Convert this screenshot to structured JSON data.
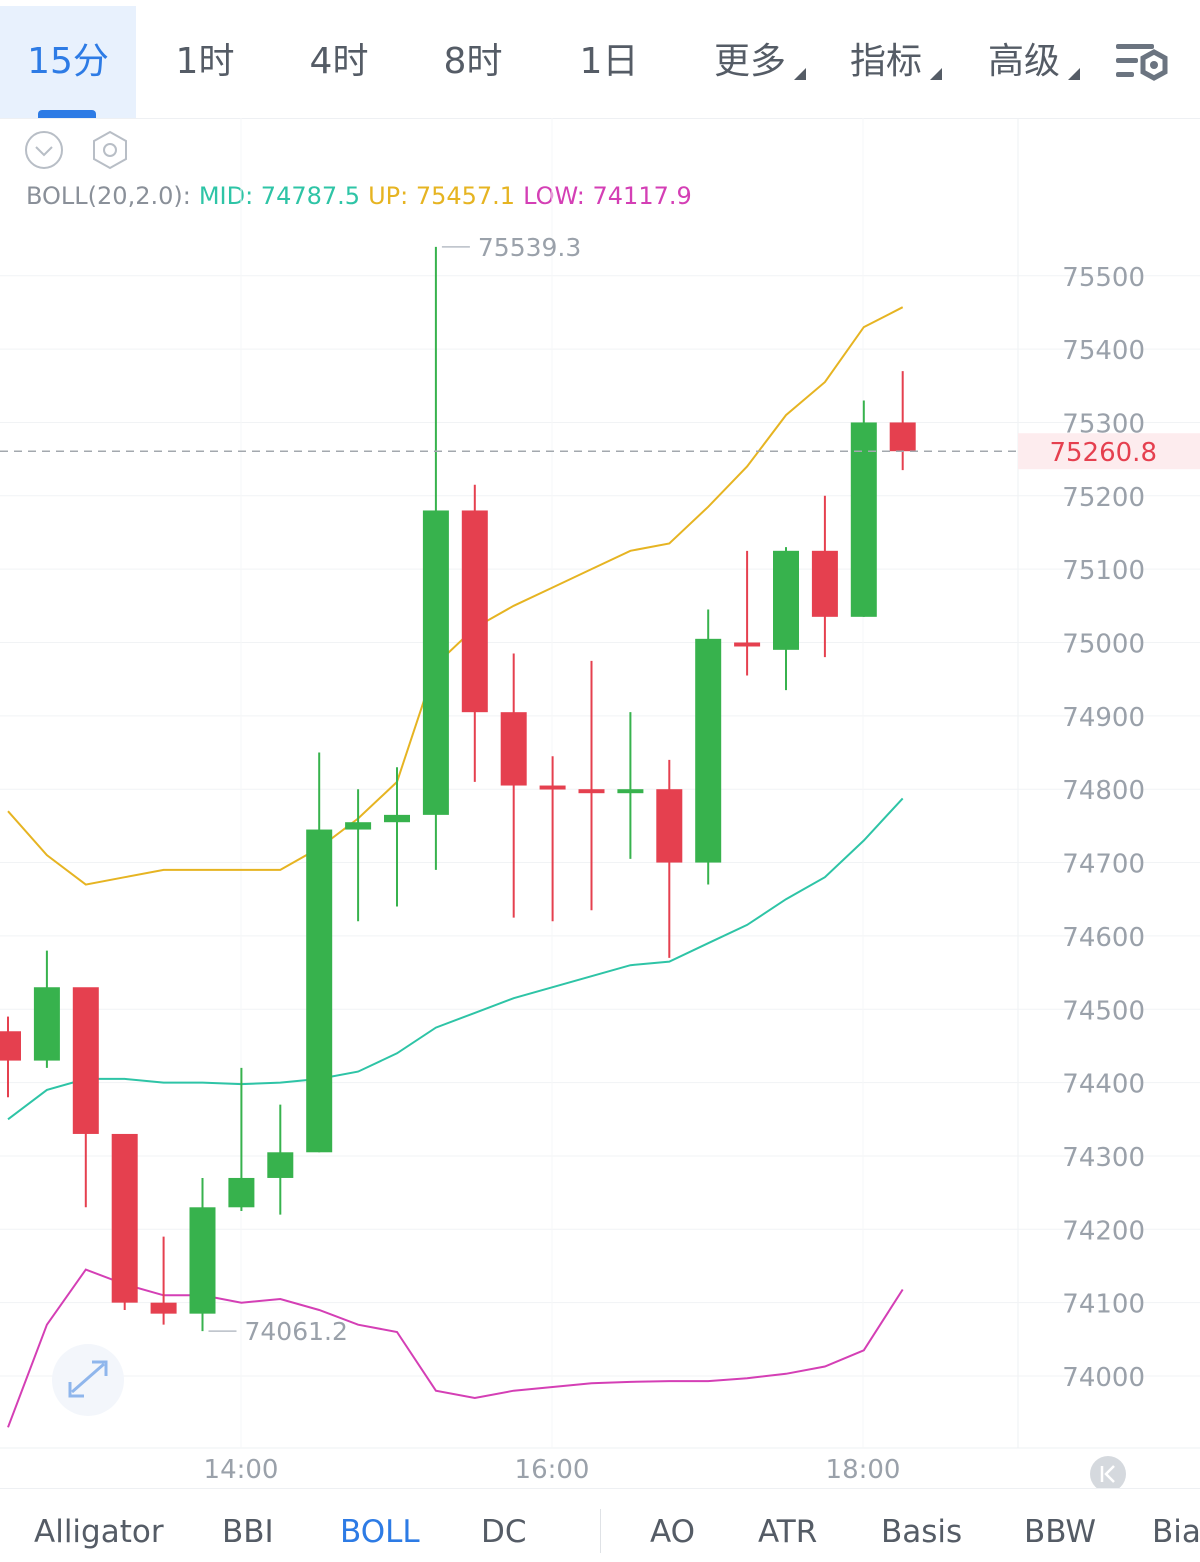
{
  "timeframe_tabs": [
    "15分",
    "1时",
    "4时",
    "8时",
    "1日"
  ],
  "menu_tabs": [
    "更多",
    "指标",
    "高级"
  ],
  "active_tab": "15分",
  "legend": {
    "name": "BOLL(20,2.0):",
    "mid": "MID: 74787.5",
    "up": "UP: 75457.1",
    "low": "LOW: 74117.9"
  },
  "indicators": [
    "Alligator",
    "BBI",
    "BOLL",
    "DC",
    "AO",
    "ATR",
    "Basis",
    "BBW",
    "Bias"
  ],
  "active_indicator": "BOLL",
  "colors": {
    "up_candle": "#37b24d",
    "down_candle": "#e5404f",
    "mid_line": "#2ec4a6",
    "upper_line": "#e6b422",
    "lower_line": "#d43fb5",
    "accent": "#2d7be5",
    "current_price": "#e5404f"
  },
  "chart_data": {
    "type": "candlestick",
    "x_labels": [
      "14:00",
      "16:00",
      "18:00"
    ],
    "y_ticks": [
      74000,
      74100,
      74200,
      74300,
      74400,
      74500,
      74600,
      74700,
      74800,
      74900,
      75000,
      75100,
      75200,
      75300,
      75400,
      75500
    ],
    "ylim": [
      73910,
      75570
    ],
    "current_price": 75260.8,
    "current_price_label": "75260.8",
    "max_label": "75539.3",
    "min_label": "74061.2",
    "candles": [
      {
        "o": 74470,
        "h": 74490,
        "l": 74380,
        "c": 74430
      },
      {
        "o": 74430,
        "h": 74580,
        "l": 74420,
        "c": 74530
      },
      {
        "o": 74530,
        "h": 74520,
        "l": 74230,
        "c": 74330
      },
      {
        "o": 74330,
        "h": 74330,
        "l": 74090,
        "c": 74100
      },
      {
        "o": 74100,
        "h": 74190,
        "l": 74070,
        "c": 74085
      },
      {
        "o": 74085,
        "h": 74270,
        "l": 74061.2,
        "c": 74230
      },
      {
        "o": 74230,
        "h": 74420,
        "l": 74225,
        "c": 74270
      },
      {
        "o": 74270,
        "h": 74370,
        "l": 74220,
        "c": 74305
      },
      {
        "o": 74305,
        "h": 74850,
        "l": 74305,
        "c": 74745
      },
      {
        "o": 74745,
        "h": 74800,
        "l": 74620,
        "c": 74755
      },
      {
        "o": 74755,
        "h": 74830,
        "l": 74640,
        "c": 74765
      },
      {
        "o": 74765,
        "h": 75539.3,
        "l": 74690,
        "c": 75180
      },
      {
        "o": 75180,
        "h": 75215,
        "l": 74810,
        "c": 74905
      },
      {
        "o": 74905,
        "h": 74985,
        "l": 74625,
        "c": 74805
      },
      {
        "o": 74805,
        "h": 74845,
        "l": 74620,
        "c": 74800
      },
      {
        "o": 74800,
        "h": 74975,
        "l": 74635,
        "c": 74795
      },
      {
        "o": 74795,
        "h": 74905,
        "l": 74705,
        "c": 74800
      },
      {
        "o": 74800,
        "h": 74840,
        "l": 74570,
        "c": 74700
      },
      {
        "o": 74700,
        "h": 75045,
        "l": 74670,
        "c": 75005
      },
      {
        "o": 75000,
        "h": 75125,
        "l": 74955,
        "c": 74995
      },
      {
        "o": 74990,
        "h": 75130,
        "l": 74935,
        "c": 75125
      },
      {
        "o": 75125,
        "h": 75200,
        "l": 74980,
        "c": 75035
      },
      {
        "o": 75035,
        "h": 75330,
        "l": 75035,
        "c": 75300
      },
      {
        "o": 75300,
        "h": 75370,
        "l": 75235,
        "c": 75260.8
      }
    ],
    "series": [
      {
        "name": "UP",
        "values": [
          74770,
          74710,
          74670,
          74680,
          74690,
          74690,
          74690,
          74690,
          74720,
          74760,
          74810,
          74970,
          75020,
          75050,
          75075,
          75100,
          75125,
          75135,
          75185,
          75240,
          75310,
          75355,
          75430,
          75457.1
        ]
      },
      {
        "name": "MID",
        "values": [
          74350,
          74390,
          74405,
          74405,
          74400,
          74400,
          74398,
          74400,
          74405,
          74415,
          74440,
          74475,
          74495,
          74515,
          74530,
          74545,
          74560,
          74565,
          74590,
          74615,
          74650,
          74680,
          74730,
          74787.5
        ]
      },
      {
        "name": "LOW",
        "values": [
          73930,
          74070,
          74145,
          74125,
          74110,
          74110,
          74100,
          74105,
          74090,
          74070,
          74060,
          73980,
          73970,
          73980,
          73985,
          73990,
          73992,
          73993,
          73993,
          73997,
          74003,
          74013,
          74035,
          74117.9
        ]
      }
    ]
  }
}
